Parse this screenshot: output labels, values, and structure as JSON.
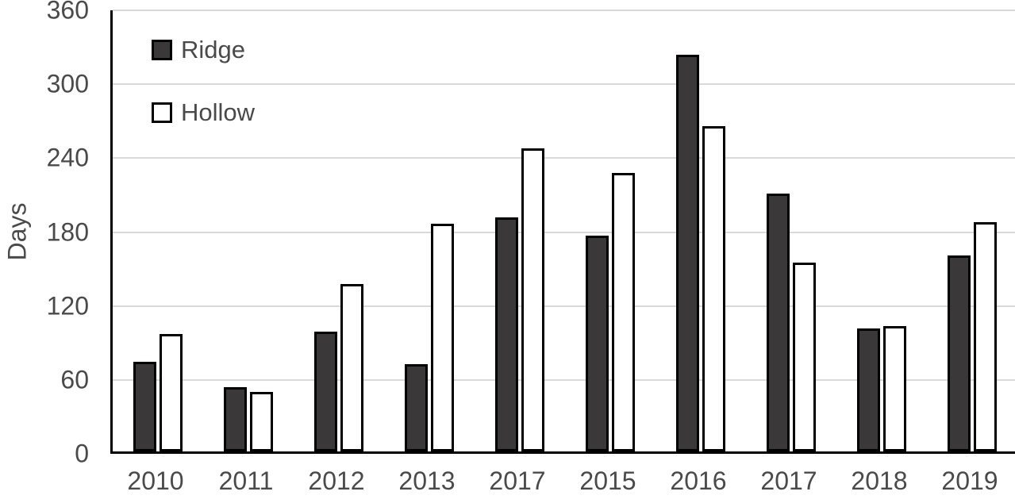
{
  "chart_data": {
    "type": "bar",
    "title": "",
    "xlabel": "",
    "ylabel": "Days",
    "ylim": [
      0,
      360
    ],
    "ytick_interval": 60,
    "grid": "horizontal",
    "legend_position": "top-left-inside",
    "categories": [
      "2010",
      "2011",
      "2012",
      "2013",
      "2017",
      "2015",
      "2016",
      "2017",
      "2018",
      "2019"
    ],
    "series": [
      {
        "name": "Ridge",
        "fill": "#3a3838",
        "values": [
          73,
          52,
          97,
          71,
          190,
          175,
          322,
          209,
          100,
          159
        ]
      },
      {
        "name": "Hollow",
        "fill": "#ffffff",
        "values": [
          95,
          48,
          136,
          185,
          246,
          226,
          264,
          153,
          102,
          186
        ]
      }
    ],
    "colors": {
      "axis": "#000000",
      "gridline": "#d9d9d9",
      "label": "#4a4a4a",
      "bar_border": "#000000"
    }
  }
}
